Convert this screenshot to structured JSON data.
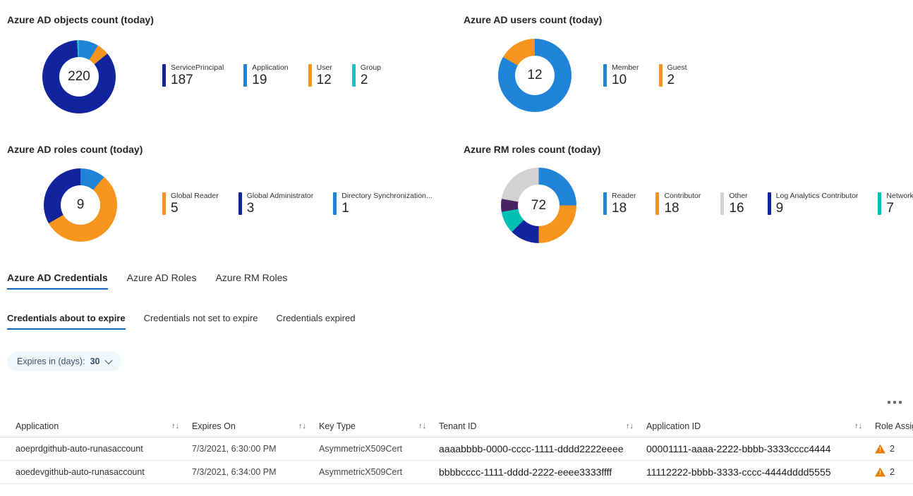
{
  "colors": {
    "navy": "#12239E",
    "blue": "#1F83D8",
    "orange": "#F7941E",
    "teal_group": "#18C1CC",
    "teal_network": "#00BFB3",
    "gray_slice": "#D2D2D2",
    "purple_slice": "#472366",
    "tab_underline": "#0F6CBD",
    "pill_background": "#EFF6FC",
    "warning": "#E87C00"
  },
  "chart_data": [
    {
      "type": "donut",
      "title": "Azure AD objects count (today)",
      "total": "220",
      "slices": [
        {
          "label": "ServicePrincipal",
          "value": 187,
          "color": "#12239E"
        },
        {
          "label": "Application",
          "value": 19,
          "color": "#1F83D8"
        },
        {
          "label": "User",
          "value": 12,
          "color": "#F7941E"
        },
        {
          "label": "Group",
          "value": 2,
          "color": "#18C1CC"
        }
      ],
      "donut_order": [
        1,
        2,
        0,
        3
      ],
      "legend_position": "right"
    },
    {
      "type": "donut",
      "title": "Azure AD users count (today)",
      "total": "12",
      "slices": [
        {
          "label": "Member",
          "value": 10,
          "color": "#1F83D8"
        },
        {
          "label": "Guest",
          "value": 2,
          "color": "#F7941E"
        }
      ],
      "donut_order": [
        0,
        1
      ],
      "legend_position": "right"
    },
    {
      "type": "donut",
      "title": "Azure AD roles count (today)",
      "total": "9",
      "slices": [
        {
          "label": "Global Reader",
          "value": 5,
          "color": "#F7941E"
        },
        {
          "label": "Global Administrator",
          "value": 3,
          "color": "#12239E"
        },
        {
          "label": "Directory Synchronization...",
          "value": 1,
          "color": "#1F83D8"
        }
      ],
      "donut_order": [
        2,
        0,
        1
      ],
      "legend_position": "right"
    },
    {
      "type": "donut",
      "title": "Azure RM roles count (today)",
      "total": "72",
      "slices": [
        {
          "label": "Reader",
          "value": 18,
          "color": "#1F83D8"
        },
        {
          "label": "Contributor",
          "value": 18,
          "color": "#F7941E"
        },
        {
          "label": "Other",
          "value": 16,
          "color": "#D2D2D2"
        },
        {
          "label": "Log Analytics Contributor",
          "value": 9,
          "color": "#12239E"
        },
        {
          "label": "Network Contributor",
          "value": 7,
          "color": "#00BFB3"
        },
        {
          "label": "",
          "value": 4,
          "color": "#472366",
          "legend": false
        }
      ],
      "donut_order": [
        0,
        1,
        3,
        4,
        5,
        2
      ],
      "legend_position": "right"
    }
  ],
  "tabs_primary": [
    {
      "label": "Azure AD Credentials",
      "active": true
    },
    {
      "label": "Azure AD Roles",
      "active": false
    },
    {
      "label": "Azure RM Roles",
      "active": false
    }
  ],
  "tabs_secondary": [
    {
      "label": "Credentials about to expire",
      "active": true
    },
    {
      "label": "Credentials not set to expire",
      "active": false
    },
    {
      "label": "Credentials expired",
      "active": false
    }
  ],
  "filter_pill": {
    "label": "Expires in (days):",
    "value": "30"
  },
  "table": {
    "sort_icon": "↑↓",
    "columns": [
      "Application",
      "Expires On",
      "Key Type",
      "Tenant ID",
      "Application ID",
      "Role Assignments"
    ],
    "rows": [
      {
        "application": "aoeprdgithub-auto-runasaccount",
        "expires_on": "7/3/2021, 6:30:00 PM",
        "key_type": "AsymmetricX509Cert",
        "tenant_id": "aaaabbbb-0000-cccc-1111-dddd2222eeee",
        "application_id": "00001111-aaaa-2222-bbbb-3333cccc4444",
        "role_assignments_warning_count": "2"
      },
      {
        "application": "aoedevgithub-auto-runasaccount",
        "expires_on": "7/3/2021, 6:34:00 PM",
        "key_type": "AsymmetricX509Cert",
        "tenant_id": "bbbbcccc-1111-dddd-2222-eeee3333ffff",
        "application_id": "11112222-bbbb-3333-cccc-4444dddd5555",
        "role_assignments_warning_count": "2"
      }
    ]
  }
}
